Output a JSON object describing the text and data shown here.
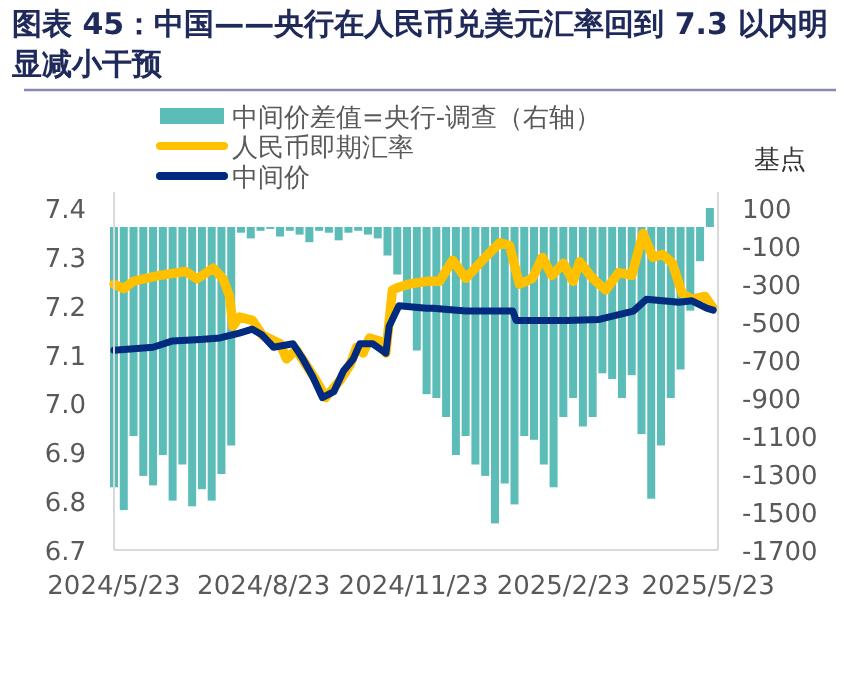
{
  "chart_data": {
    "type": "line",
    "title": "图表 45：中国——央行在人民币兑美元汇率回到 7.3 以内明显减小干预",
    "y2label": "基点",
    "legend": "top",
    "xlim": [
      "2024-05-23",
      "2025-05-29"
    ],
    "xticks": [
      {
        "value": "2024-05-23",
        "label": "2024/5/23"
      },
      {
        "value": "2024-08-23",
        "label": "2024/8/23"
      },
      {
        "value": "2024-11-23",
        "label": "2024/11/23"
      },
      {
        "value": "2025-02-23",
        "label": "2025/2/23"
      },
      {
        "value": "2025-05-23",
        "label": "2025/5/23"
      }
    ],
    "ylim": [
      6.7,
      7.4
    ],
    "yticks": [
      6.7,
      6.8,
      6.9,
      {
        "value": 7,
        "label": "7.0"
      },
      7.1,
      7.2,
      7.3,
      7.4
    ],
    "y2lim": [
      -1700,
      100
    ],
    "y2ticks": [
      -1700,
      -1500,
      -1300,
      -1100,
      -900,
      -700,
      -500,
      -300,
      -100,
      100
    ],
    "series": [
      {
        "name": "中间价差值=央行-调查（右轴）",
        "type": "bar",
        "axis": "y2",
        "color": "#5bbcb8",
        "x": [
          "2024-05-23",
          "2024-05-29",
          "2024-06-04",
          "2024-06-10",
          "2024-06-16",
          "2024-06-22",
          "2024-06-28",
          "2024-07-04",
          "2024-07-10",
          "2024-07-16",
          "2024-07-22",
          "2024-07-28",
          "2024-08-03",
          "2024-08-09",
          "2024-08-15",
          "2024-08-21",
          "2024-08-27",
          "2024-09-02",
          "2024-09-08",
          "2024-09-14",
          "2024-09-20",
          "2024-09-26",
          "2024-10-02",
          "2024-10-08",
          "2024-10-14",
          "2024-10-20",
          "2024-10-26",
          "2024-11-01",
          "2024-11-07",
          "2024-11-13",
          "2024-11-19",
          "2024-11-25",
          "2024-12-01",
          "2024-12-07",
          "2024-12-13",
          "2024-12-19",
          "2024-12-25",
          "2024-12-31",
          "2025-01-06",
          "2025-01-12",
          "2025-01-18",
          "2025-01-24",
          "2025-01-30",
          "2025-02-05",
          "2025-02-11",
          "2025-02-17",
          "2025-02-23",
          "2025-03-01",
          "2025-03-07",
          "2025-03-13",
          "2025-03-19",
          "2025-03-25",
          "2025-03-31",
          "2025-04-06",
          "2025-04-12",
          "2025-04-18",
          "2025-04-24",
          "2025-04-30",
          "2025-05-06",
          "2025-05-12",
          "2025-05-18",
          "2025-05-24"
        ],
        "values": [
          -1370,
          -1490,
          -1100,
          -1310,
          -1360,
          -1200,
          -1440,
          -1250,
          -1470,
          -1380,
          -1440,
          -1300,
          -1150,
          -30,
          -60,
          -20,
          -10,
          -50,
          -20,
          -40,
          -80,
          -20,
          -30,
          -70,
          -30,
          -20,
          -40,
          -60,
          -150,
          -250,
          -420,
          -650,
          -880,
          -900,
          -1000,
          -1200,
          -1100,
          -1250,
          -1310,
          -1560,
          -1350,
          -1460,
          -1100,
          -1120,
          -1250,
          -1370,
          -1000,
          -900,
          -1050,
          -1000,
          -770,
          -800,
          -900,
          -780,
          -1090,
          -1430,
          -1150,
          -900,
          -750,
          -440,
          -180,
          100
        ]
      },
      {
        "name": "人民币即期汇率",
        "color": "#ffc000",
        "x": [
          "2024-05-23",
          "2024-05-29",
          "2024-06-04",
          "2024-06-20",
          "2024-07-06",
          "2024-07-13",
          "2024-07-23",
          "2024-07-29",
          "2024-08-02",
          "2024-08-04",
          "2024-08-08",
          "2024-08-16",
          "2024-08-22",
          "2024-09-02",
          "2024-09-06",
          "2024-09-12",
          "2024-09-18",
          "2024-09-24",
          "2024-09-30",
          "2024-10-09",
          "2024-10-15",
          "2024-10-19",
          "2024-10-23",
          "2024-10-27",
          "2024-11-02",
          "2024-11-06",
          "2024-11-10",
          "2024-11-14",
          "2024-11-20",
          "2024-12-01",
          "2024-12-09",
          "2024-12-17",
          "2024-12-25",
          "2025-01-06",
          "2025-01-15",
          "2025-01-21",
          "2025-01-27",
          "2025-02-04",
          "2025-02-10",
          "2025-02-16",
          "2025-02-23",
          "2025-03-01",
          "2025-03-05",
          "2025-03-13",
          "2025-03-21",
          "2025-03-29",
          "2025-04-06",
          "2025-04-13",
          "2025-04-19",
          "2025-04-25",
          "2025-05-01",
          "2025-05-07",
          "2025-05-13",
          "2025-05-21",
          "2025-05-26"
        ],
        "values": [
          7.244,
          7.235,
          7.25,
          7.262,
          7.27,
          7.255,
          7.277,
          7.255,
          7.219,
          7.158,
          7.177,
          7.17,
          7.14,
          7.122,
          7.091,
          7.11,
          7.079,
          7.048,
          7.012,
          7.048,
          7.079,
          7.115,
          7.103,
          7.134,
          7.128,
          7.103,
          7.232,
          7.238,
          7.244,
          7.25,
          7.25,
          7.293,
          7.256,
          7.299,
          7.329,
          7.323,
          7.244,
          7.256,
          7.299,
          7.262,
          7.287,
          7.25,
          7.29,
          7.256,
          7.232,
          7.268,
          7.262,
          7.348,
          7.299,
          7.305,
          7.287,
          7.225,
          7.213,
          7.219,
          7.195
        ]
      },
      {
        "name": "中间价",
        "color": "#002b7f",
        "x": [
          "2024-05-23",
          "2024-06-16",
          "2024-06-28",
          "2024-07-15",
          "2024-07-27",
          "2024-08-08",
          "2024-08-16",
          "2024-08-22",
          "2024-08-29",
          "2024-09-10",
          "2024-09-16",
          "2024-09-22",
          "2024-09-28",
          "2024-10-05",
          "2024-10-11",
          "2024-10-17",
          "2024-10-21",
          "2024-10-29",
          "2024-11-06",
          "2024-11-08",
          "2024-11-14",
          "2024-12-01",
          "2024-12-05",
          "2024-12-25",
          "2025-01-23",
          "2025-01-25",
          "2025-02-25",
          "2025-03-17",
          "2025-04-07",
          "2025-04-15",
          "2025-05-05",
          "2025-05-13",
          "2025-05-22",
          "2025-05-26"
        ],
        "values": [
          7.109,
          7.115,
          7.128,
          7.131,
          7.134,
          7.144,
          7.152,
          7.14,
          7.115,
          7.122,
          7.091,
          7.055,
          7.012,
          7.024,
          7.067,
          7.091,
          7.122,
          7.122,
          7.103,
          7.158,
          7.2,
          7.195,
          7.195,
          7.189,
          7.189,
          7.17,
          7.17,
          7.172,
          7.189,
          7.213,
          7.207,
          7.21,
          7.195,
          7.191
        ]
      }
    ]
  }
}
